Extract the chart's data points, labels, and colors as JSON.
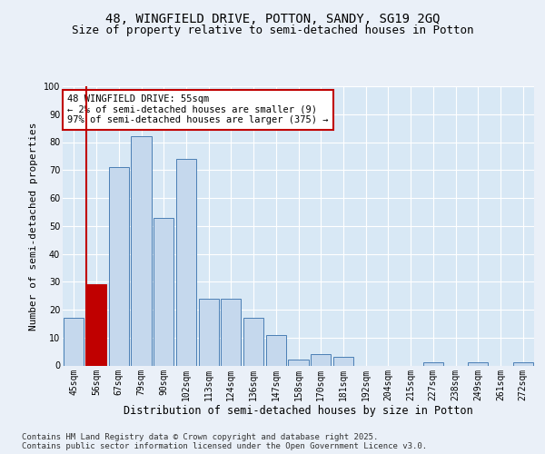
{
  "title1": "48, WINGFIELD DRIVE, POTTON, SANDY, SG19 2GQ",
  "title2": "Size of property relative to semi-detached houses in Potton",
  "xlabel": "Distribution of semi-detached houses by size in Potton",
  "ylabel": "Number of semi-detached properties",
  "categories": [
    "45sqm",
    "56sqm",
    "67sqm",
    "79sqm",
    "90sqm",
    "102sqm",
    "113sqm",
    "124sqm",
    "136sqm",
    "147sqm",
    "158sqm",
    "170sqm",
    "181sqm",
    "192sqm",
    "204sqm",
    "215sqm",
    "227sqm",
    "238sqm",
    "249sqm",
    "261sqm",
    "272sqm"
  ],
  "values": [
    17,
    29,
    71,
    82,
    53,
    74,
    24,
    24,
    17,
    11,
    2,
    4,
    3,
    0,
    0,
    0,
    1,
    0,
    1,
    0,
    1
  ],
  "bar_color": "#c5d8ed",
  "bar_edge_color": "#4a7fb5",
  "highlight_bar_index": 1,
  "highlight_color": "#c00000",
  "highlight_edge_color": "#c00000",
  "annotation_text": "48 WINGFIELD DRIVE: 55sqm\n← 2% of semi-detached houses are smaller (9)\n97% of semi-detached houses are larger (375) →",
  "annotation_box_color": "#ffffff",
  "annotation_border_color": "#c00000",
  "footer1": "Contains HM Land Registry data © Crown copyright and database right 2025.",
  "footer2": "Contains public sector information licensed under the Open Government Licence v3.0.",
  "bg_color": "#eaf0f8",
  "plot_bg_color": "#d8e8f5",
  "ylim": [
    0,
    100
  ],
  "title1_fontsize": 10,
  "title2_fontsize": 9,
  "xlabel_fontsize": 8.5,
  "ylabel_fontsize": 8,
  "tick_fontsize": 7,
  "annotation_fontsize": 7.5,
  "footer_fontsize": 6.5
}
